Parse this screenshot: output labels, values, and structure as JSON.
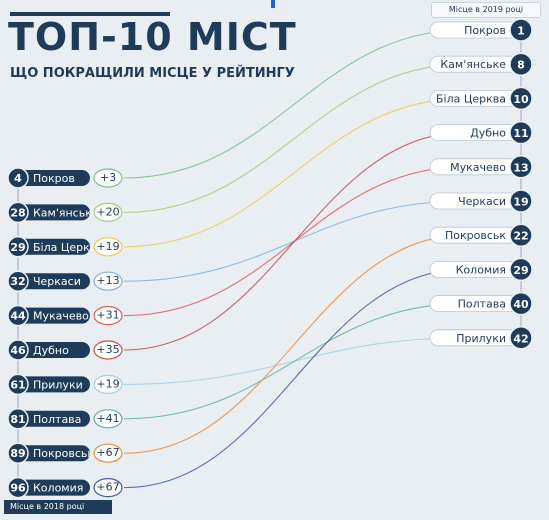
{
  "title": "ТОП-10 МІСТ",
  "subtitle": "ЩО ПОКРАЩИЛИ МІСЦЕ У РЕЙТИНГУ",
  "legend_2019": "Місце в 2019 році",
  "legend_2018": "Місце в 2018 році",
  "chart_data": {
    "type": "slope",
    "left_column": [
      {
        "city": "Покров",
        "rank_2018": 4,
        "change": "+3",
        "color": "#7bbf8a"
      },
      {
        "city": "Кам'янське",
        "rank_2018": 28,
        "change": "+20",
        "color": "#9fcf7a"
      },
      {
        "city": "Біла Церква",
        "rank_2018": 29,
        "change": "+19",
        "color": "#f2c94c"
      },
      {
        "city": "Черкаси",
        "rank_2018": 32,
        "change": "+13",
        "color": "#7fb3e0"
      },
      {
        "city": "Мукачево",
        "rank_2018": 44,
        "change": "+31",
        "color": "#e05a5a"
      },
      {
        "city": "Дубно",
        "rank_2018": 46,
        "change": "+35",
        "color": "#c0504d"
      },
      {
        "city": "Прилуки",
        "rank_2018": 61,
        "change": "+19",
        "color": "#9fd1e6"
      },
      {
        "city": "Полтава",
        "rank_2018": 81,
        "change": "+41",
        "color": "#5fb3a0"
      },
      {
        "city": "Покровськ",
        "rank_2018": 89,
        "change": "+67",
        "color": "#f08a3c"
      },
      {
        "city": "Коломия",
        "rank_2018": 96,
        "change": "+67",
        "color": "#3f5aa8"
      }
    ],
    "right_column": [
      {
        "city": "Покров",
        "rank_2019": 1
      },
      {
        "city": "Кам'янське",
        "rank_2019": 8
      },
      {
        "city": "Біла Церква",
        "rank_2019": 10
      },
      {
        "city": "Дубно",
        "rank_2019": 11
      },
      {
        "city": "Мукачево",
        "rank_2019": 13
      },
      {
        "city": "Черкаси",
        "rank_2019": 19
      },
      {
        "city": "Покровськ",
        "rank_2019": 22
      },
      {
        "city": "Коломия",
        "rank_2019": 29
      },
      {
        "city": "Полтава",
        "rank_2019": 40
      },
      {
        "city": "Прилуки",
        "rank_2019": 42
      }
    ],
    "primary_color": "#1f3b5a"
  }
}
